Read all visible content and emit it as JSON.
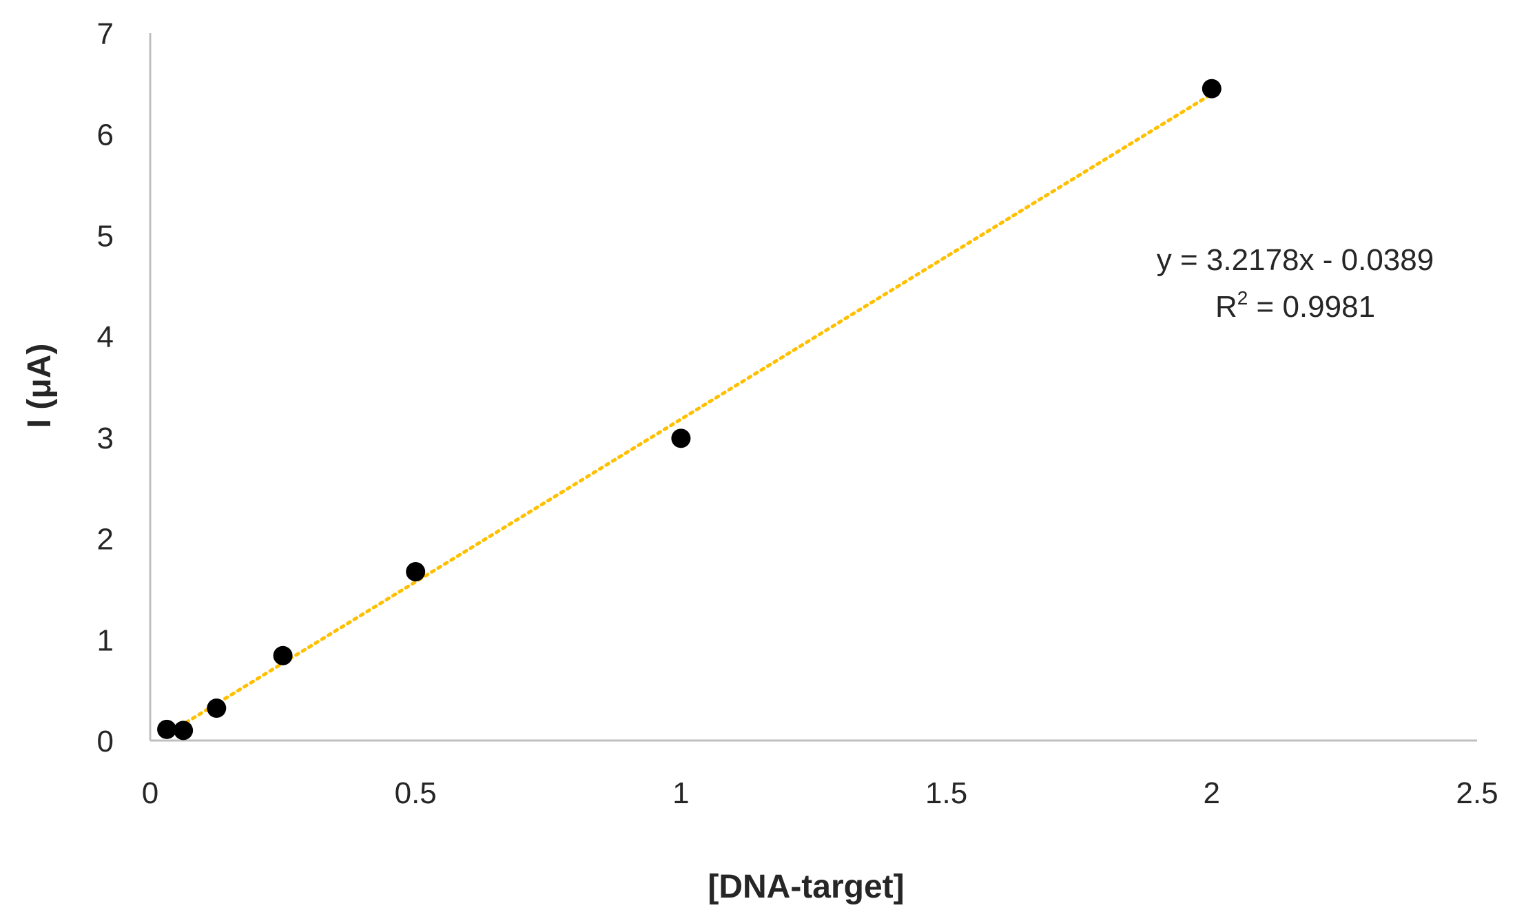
{
  "chart_data": {
    "type": "scatter",
    "xlabel": "[DNA-target]",
    "ylabel": "I (μA)",
    "xlim": [
      0,
      2.5
    ],
    "ylim": [
      0,
      7
    ],
    "x_ticks": [
      "0",
      "0.5",
      "1",
      "1.5",
      "2",
      "2.5"
    ],
    "y_ticks": [
      "0",
      "1",
      "2",
      "3",
      "4",
      "5",
      "6",
      "7"
    ],
    "grid": false,
    "series": [
      {
        "x": [
          0.03125,
          0.0625,
          0.125,
          0.25,
          0.5,
          1,
          2
        ],
        "y": [
          0.11,
          0.1,
          0.32,
          0.84,
          1.67,
          2.99,
          6.45
        ],
        "color": "#000000"
      }
    ],
    "trendline": {
      "type": "linear",
      "slope": 3.2178,
      "intercept": -0.0389,
      "x_range": [
        0.03125,
        2
      ],
      "color": "#FFC000",
      "style": "dotted"
    },
    "annotations": {
      "equation": "y = 3.2178x - 0.0389",
      "r2_prefix": "R",
      "r2_sup": "2",
      "r2_value": " = 0.9981"
    }
  }
}
